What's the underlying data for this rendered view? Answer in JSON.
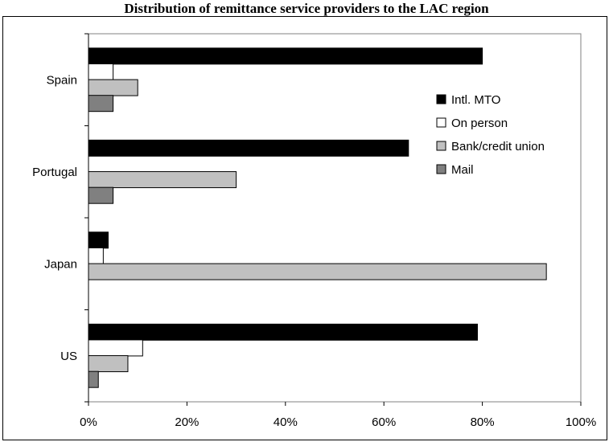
{
  "chart_data": {
    "type": "bar",
    "orientation": "horizontal",
    "title": "Distribution of remittance service providers to the LAC region",
    "categories": [
      "Spain",
      "Portugal",
      "Japan",
      "US"
    ],
    "series": [
      {
        "name": "Intl. MTO",
        "color": "#000000",
        "values": [
          80,
          65,
          4,
          79
        ]
      },
      {
        "name": "On person",
        "color": "#ffffff",
        "values": [
          5,
          0,
          3,
          11
        ]
      },
      {
        "name": "Bank/credit union",
        "color": "#c0c0c0",
        "values": [
          10,
          30,
          93,
          8
        ]
      },
      {
        "name": "Mail",
        "color": "#808080",
        "values": [
          5,
          5,
          0,
          2
        ]
      }
    ],
    "xlim": [
      0,
      100
    ],
    "x_ticks": [
      "0%",
      "20%",
      "40%",
      "60%",
      "80%",
      "100%"
    ],
    "xlabel": "",
    "ylabel": "",
    "grid": false,
    "legend_position": "right"
  }
}
